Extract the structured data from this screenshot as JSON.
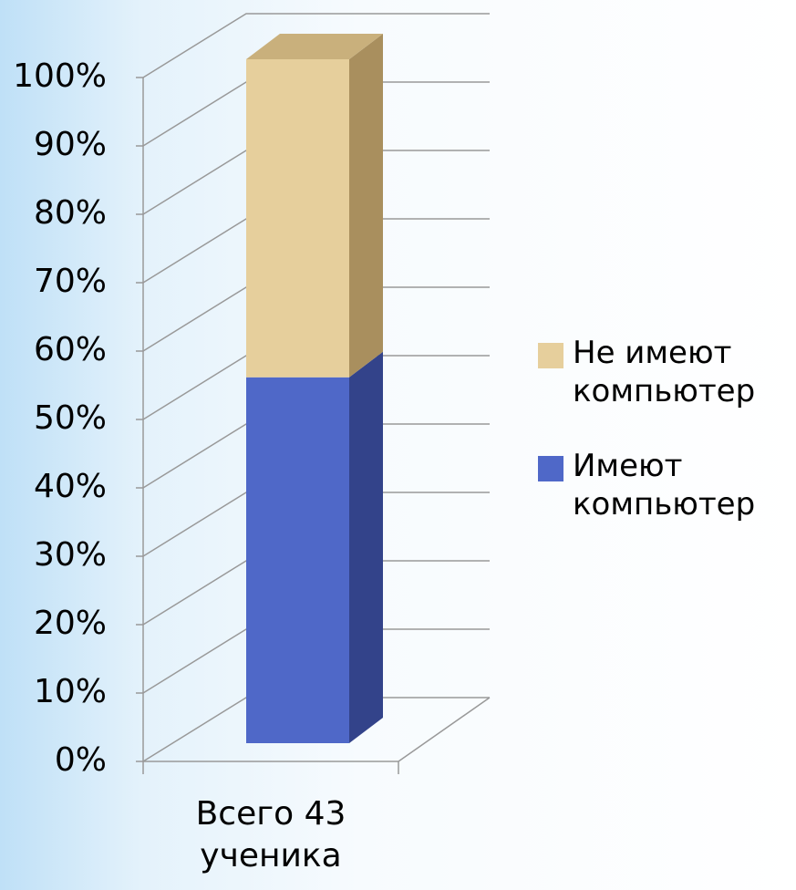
{
  "chart_data": {
    "type": "bar3d-stacked",
    "categories": [
      "Всего 43 ученика"
    ],
    "series": [
      {
        "name": "Имеют компьютер",
        "color": "#4f68c8",
        "values": [
          53.5
        ]
      },
      {
        "name": "Не имеют компьютер",
        "color": "#e6cf9c",
        "values": [
          46.5
        ]
      }
    ],
    "ylim": [
      0,
      100
    ],
    "yticks": [
      {
        "value": 0,
        "label": "0%"
      },
      {
        "value": 10,
        "label": "10%"
      },
      {
        "value": 20,
        "label": "20%"
      },
      {
        "value": 30,
        "label": "30%"
      },
      {
        "value": 40,
        "label": "40%"
      },
      {
        "value": 50,
        "label": "50%"
      },
      {
        "value": 60,
        "label": "60%"
      },
      {
        "value": 70,
        "label": "70%"
      },
      {
        "value": 80,
        "label": "80%"
      },
      {
        "value": 90,
        "label": "90%"
      },
      {
        "value": 100,
        "label": "100%"
      }
    ],
    "grid": true,
    "legend": "right"
  }
}
